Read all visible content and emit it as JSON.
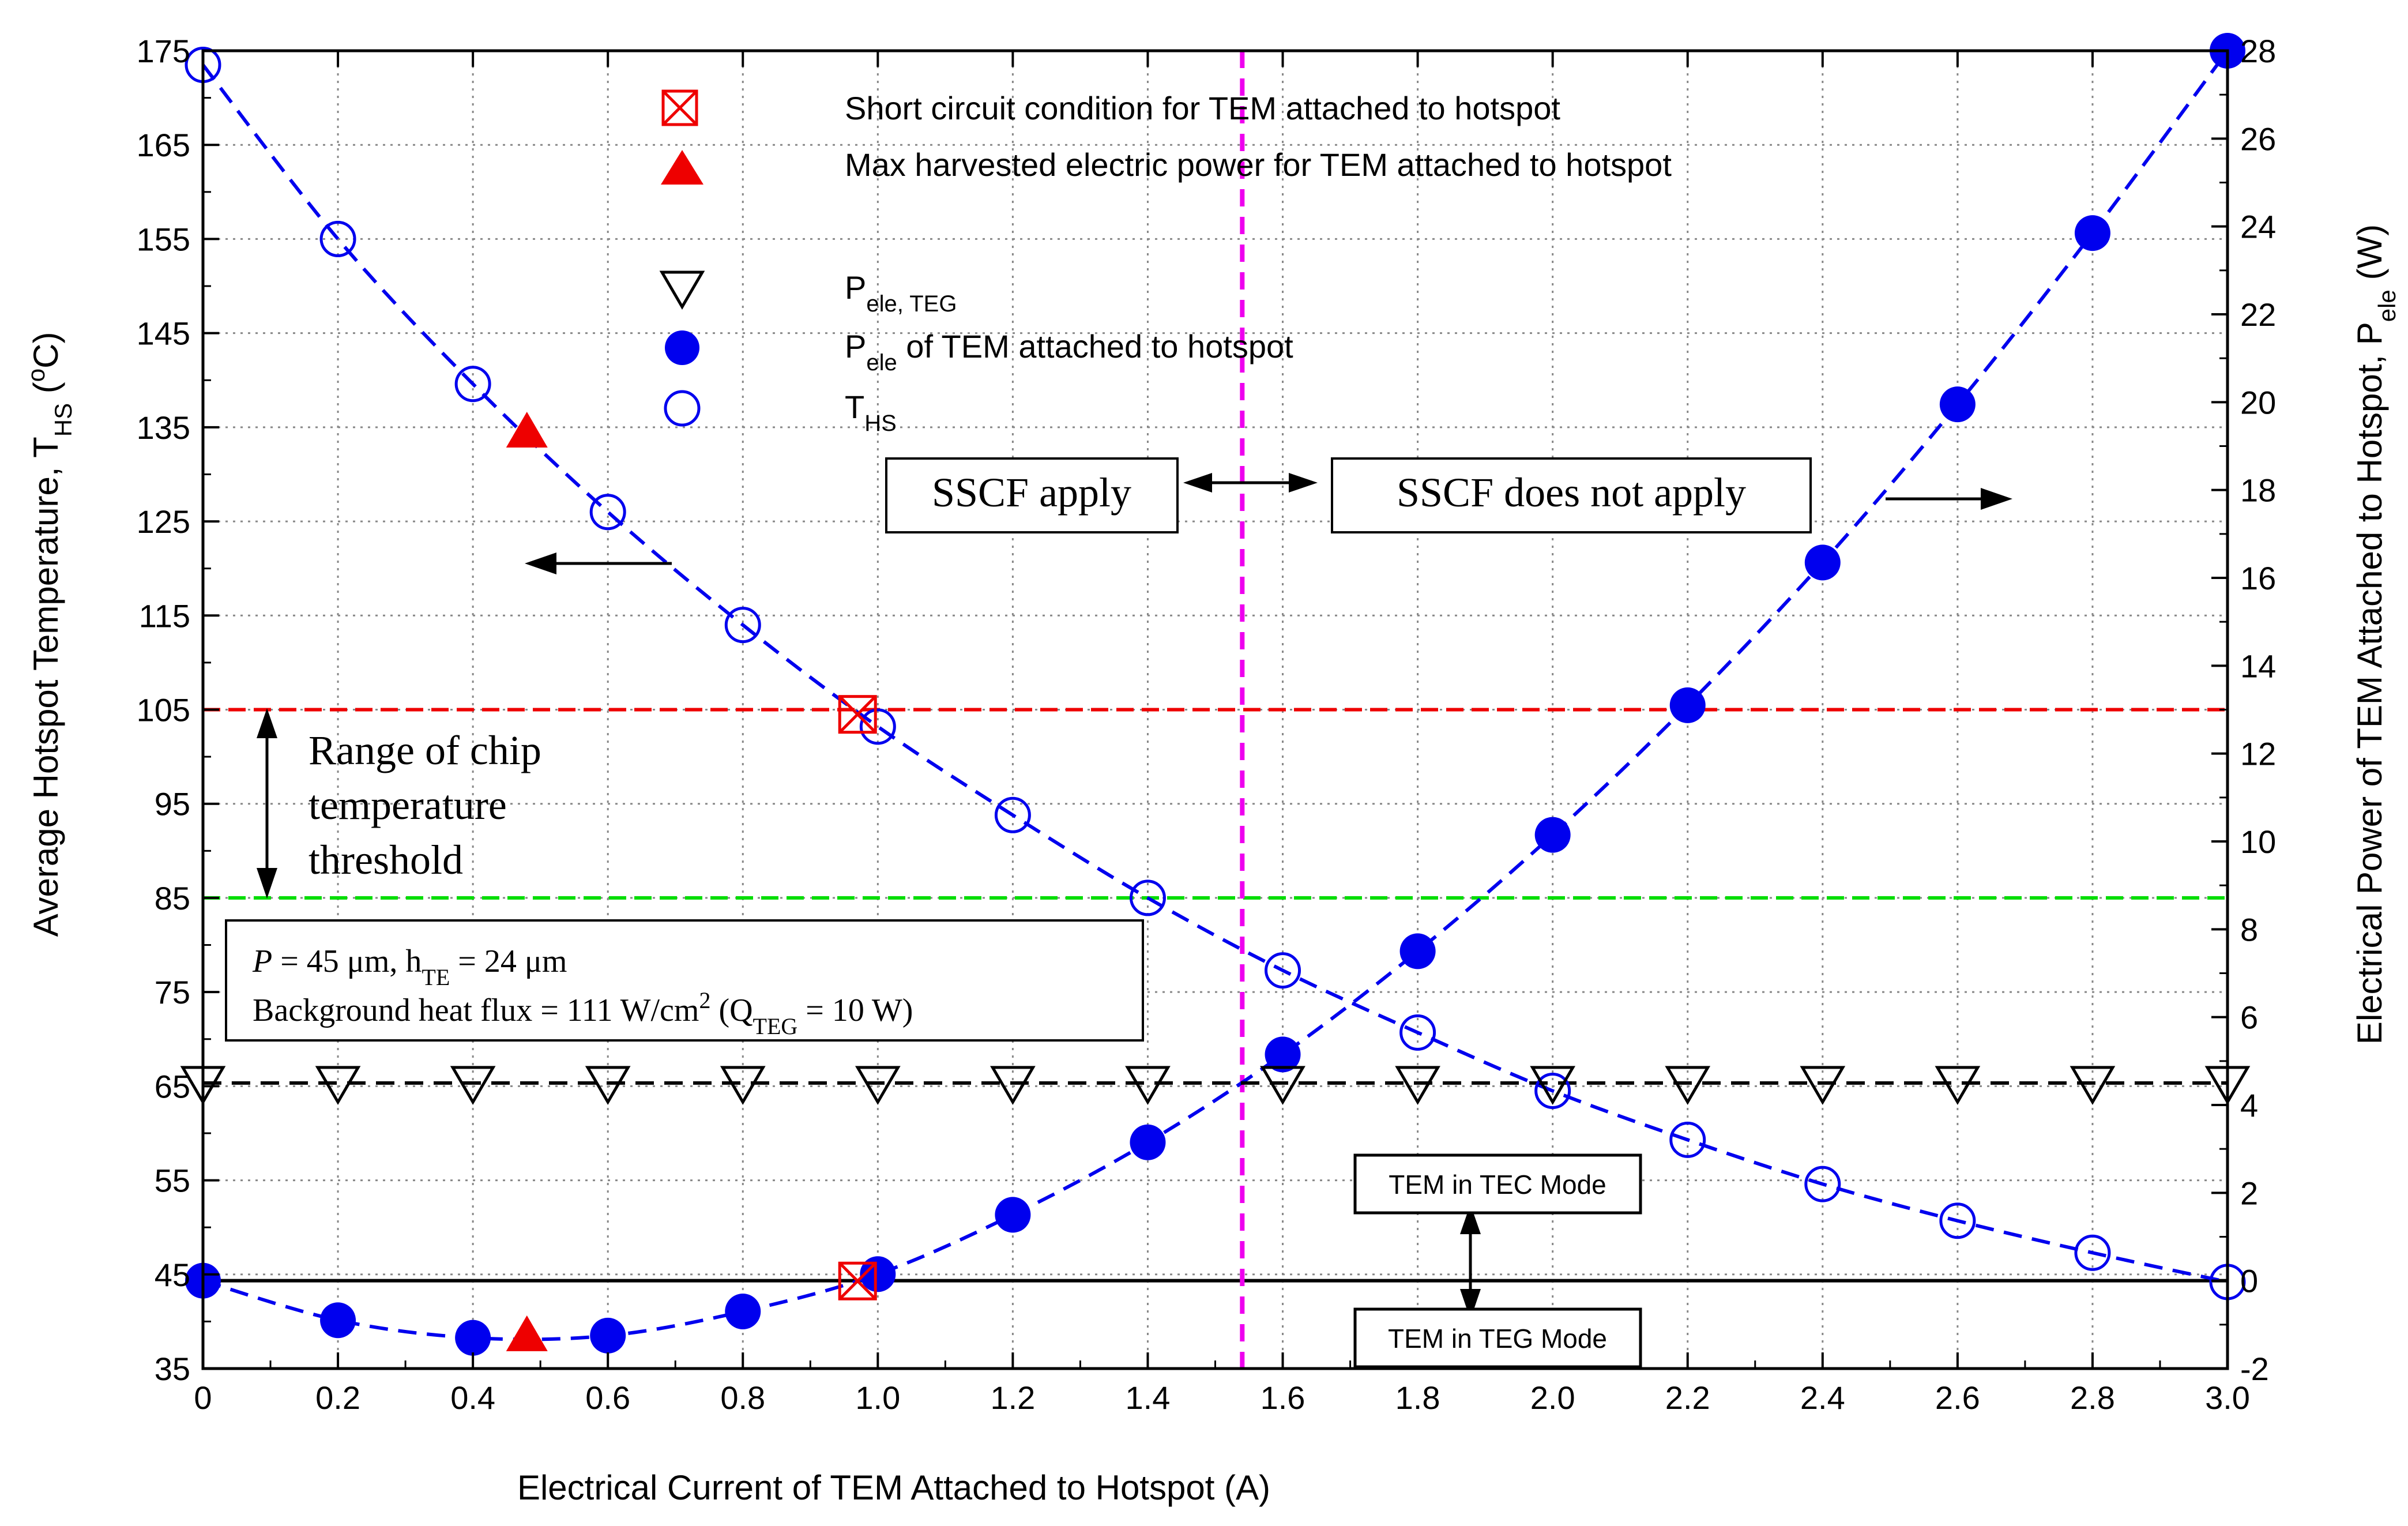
{
  "chart_data": {
    "type": "scatter",
    "title": "",
    "xlabel": "Electrical Current of TEM Attached to Hotspot (A)",
    "ylabel_left": {
      "main": "Average Hotspot Temperature, T",
      "sub": "HS",
      "tail": " (",
      "sup": "o",
      "unit": "C)"
    },
    "ylabel_right": {
      "main": "Electrical Power of TEM Attached to Hotspot, P",
      "sub": "ele",
      "unit": " (W)"
    },
    "x_range": [
      0,
      3.0
    ],
    "y_left_range": [
      35,
      175
    ],
    "y_right_range": [
      -2,
      28
    ],
    "x_ticks": [
      "0",
      "0.2",
      "0.4",
      "0.6",
      "0.8",
      "1.0",
      "1.2",
      "1.4",
      "1.6",
      "1.8",
      "2.0",
      "2.2",
      "2.4",
      "2.6",
      "2.8",
      "3.0"
    ],
    "y_left_ticks": [
      "35",
      "45",
      "55",
      "65",
      "75",
      "85",
      "95",
      "105",
      "115",
      "125",
      "135",
      "145",
      "155",
      "165",
      "175"
    ],
    "y_right_ticks": [
      "-2",
      "0",
      "2",
      "4",
      "6",
      "8",
      "10",
      "12",
      "14",
      "16",
      "18",
      "20",
      "22",
      "24",
      "26",
      "28"
    ],
    "grid": true,
    "series": [
      {
        "name": "T_HS",
        "axis": "left",
        "marker": "open-circle",
        "color": "#0000ee",
        "fit": "dashed",
        "x": [
          0,
          0.2,
          0.4,
          0.6,
          0.8,
          1.0,
          1.2,
          1.4,
          1.6,
          1.8,
          2.0,
          2.2,
          2.4,
          2.6,
          2.8,
          3.0
        ],
        "y": [
          173.5,
          155,
          139.6,
          126,
          114,
          103.2,
          93.8,
          85,
          77.3,
          70.7,
          64.5,
          59.3,
          54.6,
          50.7,
          47.3,
          44.2
        ]
      },
      {
        "name": "P_ele of TEM attached to hotspot",
        "axis": "right",
        "marker": "filled-circle",
        "color": "#0000ee",
        "fit": "dashed",
        "x": [
          0,
          0.2,
          0.4,
          0.6,
          0.8,
          1.0,
          1.2,
          1.4,
          1.6,
          1.8,
          2.0,
          2.2,
          2.4,
          2.6,
          2.8,
          3.0
        ],
        "y": [
          0,
          -0.9,
          -1.3,
          -1.25,
          -0.7,
          0.15,
          1.5,
          3.15,
          5.15,
          7.5,
          10.15,
          13.1,
          16.35,
          19.95,
          23.85,
          28
        ]
      },
      {
        "name": "P_ele, TEG",
        "axis": "right",
        "marker": "open-triangle-down",
        "color": "#000000",
        "fit": "dashed",
        "x": [
          0,
          0.2,
          0.4,
          0.6,
          0.8,
          1.0,
          1.2,
          1.4,
          1.6,
          1.8,
          2.0,
          2.2,
          2.4,
          2.6,
          2.8,
          3.0
        ],
        "y": [
          4.5,
          4.5,
          4.5,
          4.5,
          4.5,
          4.5,
          4.5,
          4.5,
          4.5,
          4.5,
          4.5,
          4.5,
          4.5,
          4.5,
          4.5,
          4.5
        ]
      }
    ],
    "special_points": [
      {
        "name": "Short circuit condition (T_HS)",
        "marker": "crossed-box",
        "color": "#ee0000",
        "x": 0.97,
        "y_left": 104.5
      },
      {
        "name": "Short circuit condition (P_ele)",
        "marker": "crossed-box",
        "color": "#ee0000",
        "x": 0.97,
        "y_left": 44.3
      },
      {
        "name": "Max harvested electric power (T_HS)",
        "marker": "filled-triangle-up",
        "color": "#ee0000",
        "x": 0.48,
        "y_left": 134.5
      },
      {
        "name": "Max harvested electric power (P_ele)",
        "marker": "filled-triangle-up",
        "color": "#ee0000",
        "x": 0.48,
        "y_left": 38.5
      }
    ],
    "reference_lines": [
      {
        "name": "chip threshold upper",
        "orientation": "horizontal",
        "y_left": 105,
        "color": "#ee0000",
        "style": "dashed"
      },
      {
        "name": "chip threshold lower",
        "orientation": "horizontal",
        "y_left": 85,
        "color": "#00dd00",
        "style": "dashed"
      },
      {
        "name": "zero power",
        "orientation": "horizontal",
        "y_right": 0,
        "color": "#000000",
        "style": "solid"
      },
      {
        "name": "SSCF boundary",
        "orientation": "vertical",
        "x": 1.54,
        "color": "#ee00ee",
        "style": "dashed"
      }
    ]
  },
  "legend": {
    "short_circuit": "Short circuit condition for TEM attached to hotspot",
    "max_power": "Max harvested electric power for TEM attached to hotspot",
    "p_teg": {
      "main": "P",
      "sub": "ele, TEG"
    },
    "p_tem": {
      "main": "P",
      "sub": "ele",
      "tail": " of TEM attached to hotspot"
    },
    "t_hs": {
      "main": "T",
      "sub": "HS"
    }
  },
  "annotations": {
    "sscf_apply": "SSCF apply",
    "sscf_not_apply": "SSCF does not apply",
    "range_line1": "Range of chip",
    "range_line2": "temperature",
    "range_line3": "threshold",
    "params_p_symbol": "P",
    "params_p_value": " = 45 μm, h",
    "params_h_sub": "TE",
    "params_h_value": " = 24 μm",
    "params_line2_a": "Background heat flux = 111 W/cm",
    "params_line2_sup": "2",
    "params_line2_b": " (Q",
    "params_line2_sub": "TEG",
    "params_line2_c": " = 10 W)",
    "tec_mode": "TEM in TEC Mode",
    "teg_mode": "TEM in TEG Mode"
  }
}
